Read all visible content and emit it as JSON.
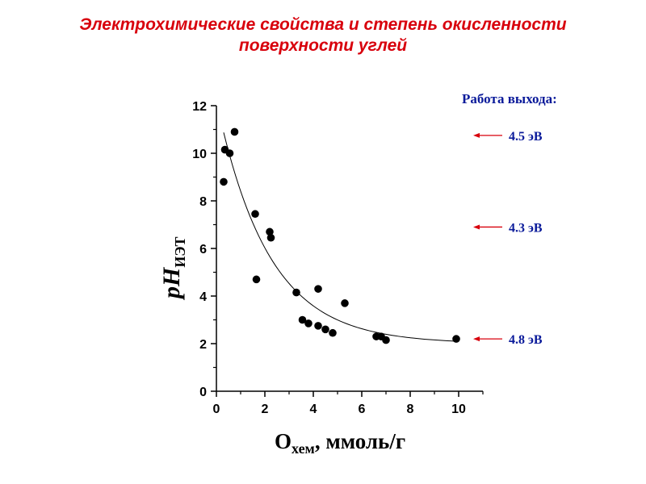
{
  "title": {
    "line1": "Электрохимические свойства и степень окисленности",
    "line2": "поверхности углей"
  },
  "axes": {
    "ylabel_main": "pH",
    "ylabel_sub": "ИЭТ",
    "xlabel_main": "O",
    "xlabel_sub": "хем",
    "xlabel_rest": ",   ммоль/г"
  },
  "work_function": {
    "title": "Работа выхода:",
    "items": [
      {
        "label": "4.5 эВ",
        "y": 10.75
      },
      {
        "label": "4.3 эВ",
        "y": 6.9
      },
      {
        "label": "4.8 эВ",
        "y": 2.2
      }
    ],
    "arrow_color": "#d8000c"
  },
  "chart_data": {
    "type": "scatter",
    "xlim": [
      0,
      11
    ],
    "ylim": [
      0,
      12
    ],
    "x_ticks": [
      0,
      2,
      4,
      6,
      8,
      10
    ],
    "y_ticks": [
      0,
      2,
      4,
      6,
      8,
      10,
      12
    ],
    "points": [
      [
        0.3,
        8.8
      ],
      [
        0.35,
        10.15
      ],
      [
        0.55,
        10.0
      ],
      [
        0.75,
        10.9
      ],
      [
        1.6,
        7.45
      ],
      [
        1.65,
        4.7
      ],
      [
        2.2,
        6.7
      ],
      [
        2.25,
        6.45
      ],
      [
        3.3,
        4.15
      ],
      [
        3.55,
        3.0
      ],
      [
        3.8,
        2.85
      ],
      [
        4.2,
        4.3
      ],
      [
        4.2,
        2.75
      ],
      [
        4.5,
        2.6
      ],
      [
        4.8,
        2.45
      ],
      [
        5.3,
        3.7
      ],
      [
        6.6,
        2.3
      ],
      [
        6.8,
        2.3
      ],
      [
        7.0,
        2.15
      ],
      [
        9.9,
        2.2
      ]
    ],
    "fit_curve": {
      "type": "exponential_decay",
      "y0": 2.0,
      "A": 10.2,
      "t": 2.15,
      "x_range": [
        0.3,
        9.9
      ]
    },
    "grid": false,
    "point_color": "#000000"
  }
}
